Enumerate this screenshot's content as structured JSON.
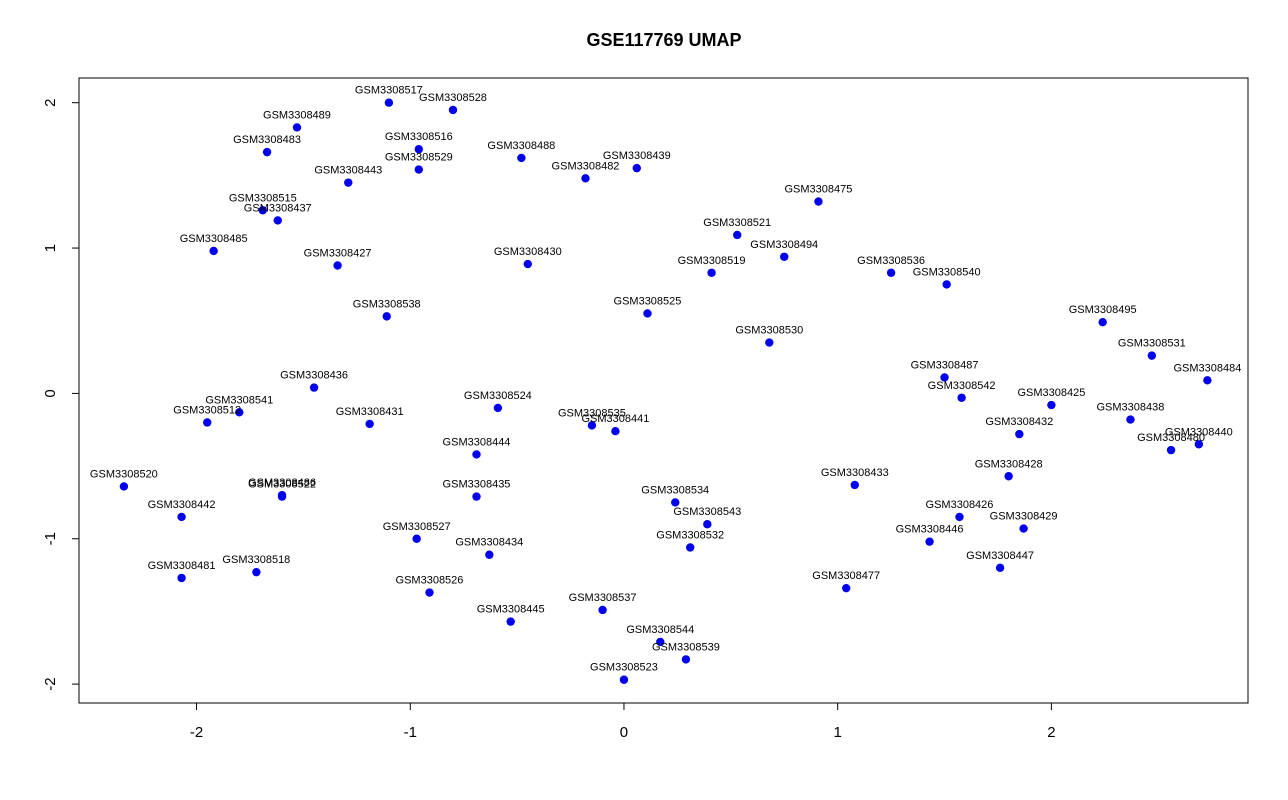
{
  "chart_data": {
    "type": "scatter",
    "title": "GSE117769 UMAP",
    "xlabel": "",
    "ylabel": "",
    "xlim": [
      -2.55,
      2.92
    ],
    "ylim": [
      -2.13,
      2.17
    ],
    "x_ticks": [
      -2,
      -1,
      0,
      1,
      2
    ],
    "y_ticks": [
      -2,
      -1,
      0,
      1,
      2
    ],
    "grid": false,
    "point_color": "#0000ee",
    "points": [
      {
        "label": "GSM3308517",
        "x": -1.1,
        "y": 2.0
      },
      {
        "label": "GSM3308528",
        "x": -0.8,
        "y": 1.95
      },
      {
        "label": "GSM3308489",
        "x": -1.53,
        "y": 1.83
      },
      {
        "label": "GSM3308516",
        "x": -0.96,
        "y": 1.68
      },
      {
        "label": "GSM3308483",
        "x": -1.67,
        "y": 1.66
      },
      {
        "label": "GSM3308488",
        "x": -0.48,
        "y": 1.62
      },
      {
        "label": "GSM3308529",
        "x": -0.96,
        "y": 1.54
      },
      {
        "label": "GSM3308439",
        "x": 0.06,
        "y": 1.55
      },
      {
        "label": "GSM3308482",
        "x": -0.18,
        "y": 1.48
      },
      {
        "label": "GSM3308443",
        "x": -1.29,
        "y": 1.45
      },
      {
        "label": "GSM3308475",
        "x": 0.91,
        "y": 1.32
      },
      {
        "label": "GSM3308515",
        "x": -1.69,
        "y": 1.26
      },
      {
        "label": "GSM3308437",
        "x": -1.62,
        "y": 1.19
      },
      {
        "label": "GSM3308521",
        "x": 0.53,
        "y": 1.09
      },
      {
        "label": "GSM3308485",
        "x": -1.92,
        "y": 0.98
      },
      {
        "label": "GSM3308494",
        "x": 0.75,
        "y": 0.94
      },
      {
        "label": "GSM3308427",
        "x": -1.34,
        "y": 0.88
      },
      {
        "label": "GSM3308430",
        "x": -0.45,
        "y": 0.89
      },
      {
        "label": "GSM3308519",
        "x": 0.41,
        "y": 0.83
      },
      {
        "label": "GSM3308536",
        "x": 1.25,
        "y": 0.83
      },
      {
        "label": "GSM3308540",
        "x": 1.51,
        "y": 0.75
      },
      {
        "label": "GSM3308525",
        "x": 0.11,
        "y": 0.55
      },
      {
        "label": "GSM3308538",
        "x": -1.11,
        "y": 0.53
      },
      {
        "label": "GSM3308495",
        "x": 2.24,
        "y": 0.49
      },
      {
        "label": "GSM3308530",
        "x": 0.68,
        "y": 0.35
      },
      {
        "label": "GSM3308531",
        "x": 2.47,
        "y": 0.26
      },
      {
        "label": "GSM3308487",
        "x": 1.5,
        "y": 0.11
      },
      {
        "label": "GSM3308484",
        "x": 2.73,
        "y": 0.09
      },
      {
        "label": "GSM3308436",
        "x": -1.45,
        "y": 0.04
      },
      {
        "label": "GSM3308542",
        "x": 1.58,
        "y": -0.03
      },
      {
        "label": "GSM3308425",
        "x": 2.0,
        "y": -0.08
      },
      {
        "label": "GSM3308524",
        "x": -0.59,
        "y": -0.1
      },
      {
        "label": "GSM3308541",
        "x": -1.8,
        "y": -0.13
      },
      {
        "label": "GSM3308438",
        "x": 2.37,
        "y": -0.18
      },
      {
        "label": "GSM3308512",
        "x": -1.95,
        "y": -0.2
      },
      {
        "label": "GSM3308431",
        "x": -1.19,
        "y": -0.21
      },
      {
        "label": "GSM3308535",
        "x": -0.15,
        "y": -0.22
      },
      {
        "label": "GSM3308441",
        "x": -0.04,
        "y": -0.26
      },
      {
        "label": "GSM3308432",
        "x": 1.85,
        "y": -0.28
      },
      {
        "label": "GSM3308440",
        "x": 2.69,
        "y": -0.35
      },
      {
        "label": "GSM3308480",
        "x": 2.56,
        "y": -0.39
      },
      {
        "label": "GSM3308444",
        "x": -0.69,
        "y": -0.42
      },
      {
        "label": "GSM3308428",
        "x": 1.8,
        "y": -0.57
      },
      {
        "label": "GSM3308433",
        "x": 1.08,
        "y": -0.63
      },
      {
        "label": "GSM3308520",
        "x": -2.34,
        "y": -0.64
      },
      {
        "label": "GSM3308486",
        "x": -1.6,
        "y": -0.7
      },
      {
        "label": "GSM3308522",
        "x": -1.6,
        "y": -0.71
      },
      {
        "label": "GSM3308435",
        "x": -0.69,
        "y": -0.71
      },
      {
        "label": "GSM3308534",
        "x": 0.24,
        "y": -0.75
      },
      {
        "label": "GSM3308442",
        "x": -2.07,
        "y": -0.85
      },
      {
        "label": "GSM3308426",
        "x": 1.57,
        "y": -0.85
      },
      {
        "label": "GSM3308543",
        "x": 0.39,
        "y": -0.9
      },
      {
        "label": "GSM3308429",
        "x": 1.87,
        "y": -0.93
      },
      {
        "label": "GSM3308527",
        "x": -0.97,
        "y": -1.0
      },
      {
        "label": "GSM3308446",
        "x": 1.43,
        "y": -1.02
      },
      {
        "label": "GSM3308532",
        "x": 0.31,
        "y": -1.06
      },
      {
        "label": "GSM3308434",
        "x": -0.63,
        "y": -1.11
      },
      {
        "label": "GSM3308447",
        "x": 1.76,
        "y": -1.2
      },
      {
        "label": "GSM3308518",
        "x": -1.72,
        "y": -1.23
      },
      {
        "label": "GSM3308481",
        "x": -2.07,
        "y": -1.27
      },
      {
        "label": "GSM3308477",
        "x": 1.04,
        "y": -1.34
      },
      {
        "label": "GSM3308526",
        "x": -0.91,
        "y": -1.37
      },
      {
        "label": "GSM3308537",
        "x": -0.1,
        "y": -1.49
      },
      {
        "label": "GSM3308445",
        "x": -0.53,
        "y": -1.57
      },
      {
        "label": "GSM3308544",
        "x": 0.17,
        "y": -1.71
      },
      {
        "label": "GSM3308539",
        "x": 0.29,
        "y": -1.83
      },
      {
        "label": "GSM3308523",
        "x": 0.0,
        "y": -1.97
      }
    ]
  }
}
